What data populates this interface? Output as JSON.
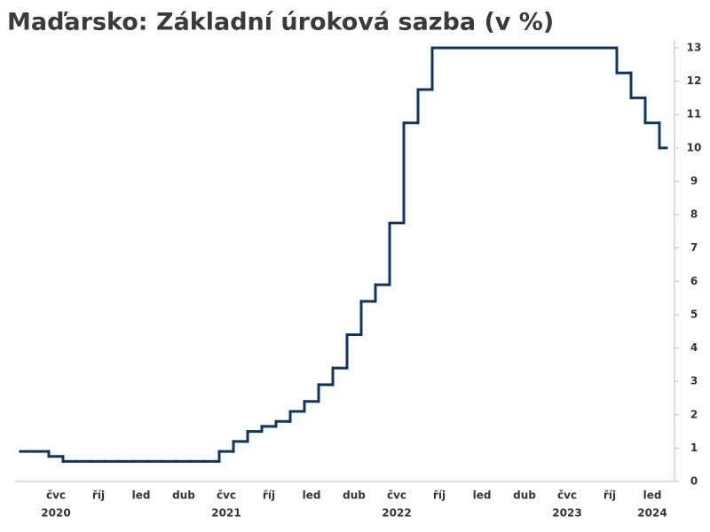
{
  "chart_data": {
    "type": "step",
    "title": "Maďarsko: Základní úroková sazba (v %)",
    "x": [
      "2020-05",
      "2020-06",
      "2020-07",
      "2020-08",
      "2020-09",
      "2020-10",
      "2020-11",
      "2020-12",
      "2021-01",
      "2021-02",
      "2021-03",
      "2021-04",
      "2021-05",
      "2021-06",
      "2021-07",
      "2021-08",
      "2021-09",
      "2021-10",
      "2021-11",
      "2021-12",
      "2022-01",
      "2022-02",
      "2022-03",
      "2022-04",
      "2022-05",
      "2022-06",
      "2022-07",
      "2022-08",
      "2022-09",
      "2022-10",
      "2022-11",
      "2022-12",
      "2023-01",
      "2023-02",
      "2023-03",
      "2023-04",
      "2023-05",
      "2023-06",
      "2023-07",
      "2023-08",
      "2023-09",
      "2023-10",
      "2023-11",
      "2023-12",
      "2024-01",
      "2024-02"
    ],
    "values": [
      0.9,
      0.9,
      0.75,
      0.6,
      0.6,
      0.6,
      0.6,
      0.6,
      0.6,
      0.6,
      0.6,
      0.6,
      0.6,
      0.6,
      0.9,
      1.2,
      1.5,
      1.65,
      1.8,
      2.1,
      2.4,
      2.9,
      3.4,
      4.4,
      5.4,
      5.9,
      7.75,
      10.75,
      11.75,
      13,
      13,
      13,
      13,
      13,
      13,
      13,
      13,
      13,
      13,
      13,
      13,
      13,
      12.25,
      11.5,
      10.75,
      10
    ],
    "color": "#0b3566",
    "xlim": [
      "2020-04",
      "2024-03"
    ],
    "xticks": [
      {
        "value": "2020-07",
        "label": "čvc"
      },
      {
        "value": "2020-10",
        "label": "říj"
      },
      {
        "value": "2021-01",
        "label": "led"
      },
      {
        "value": "2021-04",
        "label": "dub"
      },
      {
        "value": "2021-07",
        "label": "čvc"
      },
      {
        "value": "2021-10",
        "label": "říj"
      },
      {
        "value": "2022-01",
        "label": "led"
      },
      {
        "value": "2022-04",
        "label": "dub"
      },
      {
        "value": "2022-07",
        "label": "čvc"
      },
      {
        "value": "2022-10",
        "label": "říj"
      },
      {
        "value": "2023-01",
        "label": "led"
      },
      {
        "value": "2023-04",
        "label": "dub"
      },
      {
        "value": "2023-07",
        "label": "čvc"
      },
      {
        "value": "2023-10",
        "label": "říj"
      },
      {
        "value": "2024-01",
        "label": "led"
      }
    ],
    "year_labels": [
      {
        "value": "2020-07",
        "label": "2020"
      },
      {
        "value": "2021-07",
        "label": "2021"
      },
      {
        "value": "2022-07",
        "label": "2022"
      },
      {
        "value": "2023-07",
        "label": "2023"
      },
      {
        "value": "2024-01",
        "label": "2024"
      }
    ],
    "ylim": [
      0,
      13
    ],
    "yticks": [
      0,
      1,
      2,
      3,
      4,
      5,
      6,
      7,
      8,
      9,
      10,
      11,
      12,
      13
    ]
  }
}
